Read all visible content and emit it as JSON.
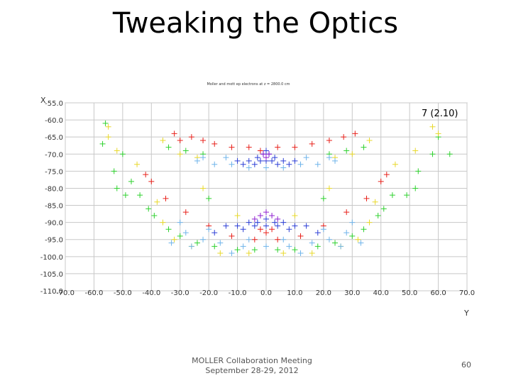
{
  "slide": {
    "title": "Tweaking the Optics",
    "footer_line1": "MOLLER Collaboration Meeting",
    "footer_line2": "September 28-29, 2012",
    "page_number": "60"
  },
  "chart_data": {
    "type": "scatter",
    "title": "Moller and mott ep electrons at z = 2800.0 cm",
    "annotation": "7 (2.10)",
    "xlabel": "Y",
    "ylabel": "X",
    "xlim": [
      -70,
      70
    ],
    "ylim": [
      -110,
      -55
    ],
    "x_ticks": [
      "-70.0",
      "-60.0",
      "-50.0",
      "-40.0",
      "-30.0",
      "-20.0",
      "-10.0",
      "0.0",
      "10.0",
      "20.0",
      "30.0",
      "40.0",
      "50.0",
      "60.0",
      "70.0"
    ],
    "y_ticks": [
      "-55.0",
      "-60.0",
      "-65.0",
      "-70.0",
      "-75.0",
      "-80.0",
      "-85.0",
      "-90.0",
      "-95.0",
      "-100.0",
      "-105.0",
      "-110.0"
    ],
    "grid": true,
    "colors": {
      "red": "#e8201a",
      "green": "#2ed12e",
      "yellow": "#e8d82a",
      "blue": "#2c3fd6",
      "cyan": "#6fb4ea",
      "purple": "#9020d0"
    },
    "series": [
      {
        "name": "red",
        "color": "#e8201a",
        "points": [
          [
            -32,
            -64
          ],
          [
            -30,
            -66
          ],
          [
            -26,
            -65
          ],
          [
            -22,
            -66
          ],
          [
            -18,
            -67
          ],
          [
            -12,
            -68
          ],
          [
            -6,
            -68
          ],
          [
            -2,
            -69
          ],
          [
            4,
            -68
          ],
          [
            10,
            -68
          ],
          [
            16,
            -67
          ],
          [
            22,
            -66
          ],
          [
            27,
            -65
          ],
          [
            31,
            -64
          ],
          [
            -42,
            -76
          ],
          [
            -40,
            -78
          ],
          [
            -35,
            -83
          ],
          [
            -28,
            -87
          ],
          [
            -20,
            -91
          ],
          [
            -12,
            -94
          ],
          [
            -4,
            -95
          ],
          [
            4,
            -95
          ],
          [
            12,
            -94
          ],
          [
            20,
            -91
          ],
          [
            28,
            -87
          ],
          [
            35,
            -83
          ],
          [
            40,
            -78
          ],
          [
            42,
            -76
          ],
          [
            -2,
            -92
          ],
          [
            2,
            -92
          ],
          [
            0,
            -93
          ]
        ]
      },
      {
        "name": "green",
        "color": "#2ed12e",
        "points": [
          [
            -56,
            -61
          ],
          [
            -57,
            -67
          ],
          [
            -50,
            -70
          ],
          [
            -53,
            -75
          ],
          [
            -47,
            -78
          ],
          [
            -52,
            -80
          ],
          [
            -49,
            -82
          ],
          [
            -44,
            -82
          ],
          [
            -41,
            -86
          ],
          [
            -39,
            -88
          ],
          [
            -34,
            -92
          ],
          [
            -30,
            -94
          ],
          [
            -24,
            -96
          ],
          [
            -18,
            -97
          ],
          [
            -10,
            -98
          ],
          [
            -4,
            -98
          ],
          [
            4,
            -98
          ],
          [
            10,
            -98
          ],
          [
            18,
            -97
          ],
          [
            24,
            -96
          ],
          [
            30,
            -94
          ],
          [
            34,
            -92
          ],
          [
            39,
            -88
          ],
          [
            41,
            -86
          ],
          [
            44,
            -82
          ],
          [
            49,
            -82
          ],
          [
            52,
            -80
          ],
          [
            53,
            -75
          ],
          [
            58,
            -70
          ],
          [
            60,
            -65
          ],
          [
            64,
            -70
          ],
          [
            -34,
            -68
          ],
          [
            -28,
            -69
          ],
          [
            -22,
            -70
          ],
          [
            22,
            -70
          ],
          [
            28,
            -69
          ],
          [
            34,
            -68
          ],
          [
            -20,
            -83
          ],
          [
            20,
            -83
          ]
        ]
      },
      {
        "name": "yellow",
        "color": "#e8d82a",
        "points": [
          [
            -55,
            -62
          ],
          [
            -55,
            -65
          ],
          [
            -52,
            -69
          ],
          [
            -45,
            -73
          ],
          [
            -38,
            -84
          ],
          [
            -36,
            -90
          ],
          [
            -32,
            -95
          ],
          [
            -26,
            -97
          ],
          [
            -16,
            -99
          ],
          [
            -6,
            -99
          ],
          [
            6,
            -99
          ],
          [
            16,
            -99
          ],
          [
            26,
            -97
          ],
          [
            32,
            -95
          ],
          [
            36,
            -90
          ],
          [
            38,
            -84
          ],
          [
            45,
            -73
          ],
          [
            52,
            -69
          ],
          [
            58,
            -62
          ],
          [
            60,
            -64
          ],
          [
            -30,
            -70
          ],
          [
            -24,
            -71
          ],
          [
            24,
            -71
          ],
          [
            30,
            -70
          ],
          [
            -36,
            -66
          ],
          [
            36,
            -66
          ],
          [
            -22,
            -80
          ],
          [
            22,
            -80
          ],
          [
            -10,
            -88
          ],
          [
            10,
            -88
          ]
        ]
      },
      {
        "name": "cyan",
        "color": "#6fb4ea",
        "points": [
          [
            -24,
            -72
          ],
          [
            -18,
            -73
          ],
          [
            -12,
            -73
          ],
          [
            -6,
            -74
          ],
          [
            0,
            -74
          ],
          [
            6,
            -74
          ],
          [
            12,
            -73
          ],
          [
            18,
            -73
          ],
          [
            24,
            -72
          ],
          [
            -22,
            -71
          ],
          [
            -14,
            -71
          ],
          [
            14,
            -71
          ],
          [
            22,
            -71
          ],
          [
            -28,
            -93
          ],
          [
            -22,
            -95
          ],
          [
            -16,
            -96
          ],
          [
            -8,
            -97
          ],
          [
            0,
            -97
          ],
          [
            8,
            -97
          ],
          [
            16,
            -96
          ],
          [
            22,
            -95
          ],
          [
            28,
            -93
          ],
          [
            -30,
            -90
          ],
          [
            30,
            -90
          ],
          [
            -20,
            -92
          ],
          [
            20,
            -92
          ],
          [
            -26,
            -97
          ],
          [
            26,
            -97
          ],
          [
            -12,
            -99
          ],
          [
            12,
            -99
          ],
          [
            -6,
            -95
          ],
          [
            6,
            -95
          ],
          [
            -33,
            -96
          ],
          [
            33,
            -96
          ]
        ]
      },
      {
        "name": "blue",
        "color": "#2c3fd6",
        "points": [
          [
            -10,
            -72
          ],
          [
            -6,
            -72
          ],
          [
            -3,
            -71
          ],
          [
            -1,
            -70
          ],
          [
            0,
            -69
          ],
          [
            1,
            -70
          ],
          [
            3,
            -71
          ],
          [
            6,
            -72
          ],
          [
            10,
            -72
          ],
          [
            -8,
            -73
          ],
          [
            8,
            -73
          ],
          [
            -4,
            -73
          ],
          [
            4,
            -73
          ],
          [
            0,
            -72
          ],
          [
            -2,
            -72
          ],
          [
            2,
            -72
          ],
          [
            -14,
            -91
          ],
          [
            -10,
            -91
          ],
          [
            -6,
            -90
          ],
          [
            -3,
            -90
          ],
          [
            0,
            -89
          ],
          [
            3,
            -90
          ],
          [
            6,
            -90
          ],
          [
            10,
            -91
          ],
          [
            14,
            -91
          ],
          [
            -8,
            -92
          ],
          [
            8,
            -92
          ],
          [
            -4,
            -91
          ],
          [
            4,
            -91
          ],
          [
            0,
            -91
          ],
          [
            -18,
            -93
          ],
          [
            18,
            -93
          ]
        ]
      },
      {
        "name": "purple",
        "color": "#9020d0",
        "points": [
          [
            -2,
            -88
          ],
          [
            0,
            -87
          ],
          [
            2,
            -88
          ],
          [
            -4,
            -89
          ],
          [
            4,
            -89
          ],
          [
            -1,
            -70
          ],
          [
            1,
            -70
          ],
          [
            0,
            -71
          ]
        ]
      }
    ]
  }
}
